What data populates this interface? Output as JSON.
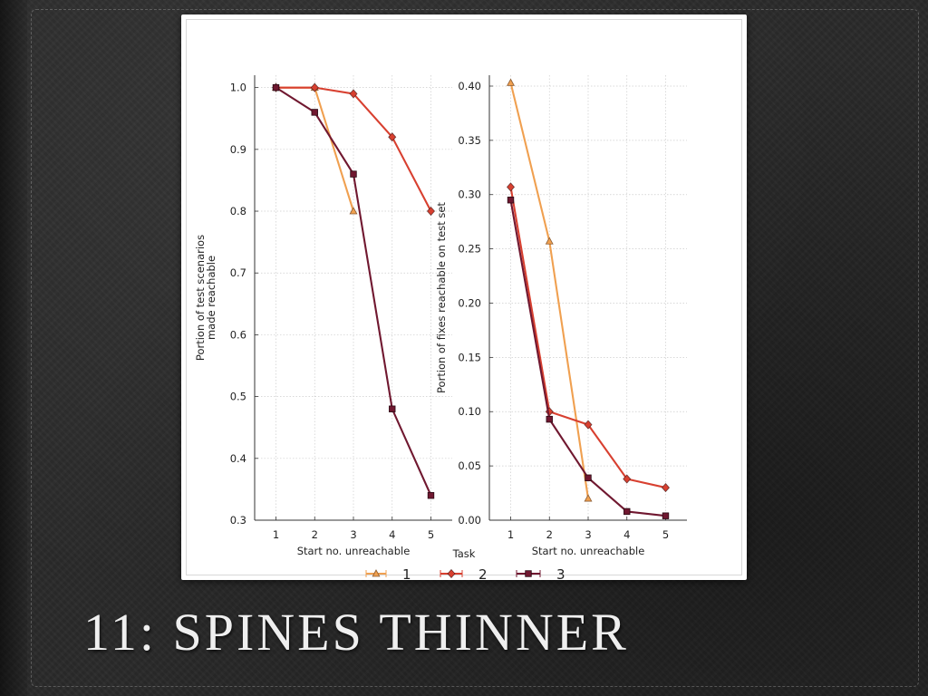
{
  "slide": {
    "title": "11: SPINES THINNER"
  },
  "colors": {
    "task1": "#f0a050",
    "task2": "#d84030",
    "task3": "#701830",
    "grid": "#cccccc",
    "axis": "#333333"
  },
  "chart_data": [
    {
      "type": "line",
      "xlabel": "Start no. unreachable",
      "ylabel": [
        "Portion of test scenarios",
        "made reachable"
      ],
      "x": [
        1,
        2,
        3,
        4,
        5
      ],
      "xlim": [
        0.45,
        5.55
      ],
      "ylim": [
        0.3,
        1.02
      ],
      "yticks": [
        "0.3",
        "0.4",
        "0.5",
        "0.6",
        "0.7",
        "0.8",
        "0.9",
        "1.0"
      ],
      "xticks": [
        "1",
        "2",
        "3",
        "4",
        "5"
      ],
      "grid": true,
      "series": [
        {
          "name": "1",
          "marker": "triangle",
          "values": [
            1.0,
            1.0,
            0.8,
            null,
            null
          ]
        },
        {
          "name": "2",
          "marker": "diamond",
          "values": [
            1.0,
            1.0,
            0.99,
            0.92,
            0.8
          ]
        },
        {
          "name": "3",
          "marker": "square",
          "values": [
            1.0,
            0.96,
            0.86,
            0.48,
            0.34
          ]
        }
      ]
    },
    {
      "type": "line",
      "xlabel": "Start no. unreachable",
      "ylabel": [
        "Portion of fixes reachable on test set"
      ],
      "x": [
        1,
        2,
        3,
        4,
        5
      ],
      "xlim": [
        0.45,
        5.55
      ],
      "ylim": [
        0.0,
        0.41
      ],
      "yticks": [
        "0.00",
        "0.05",
        "0.10",
        "0.15",
        "0.20",
        "0.25",
        "0.30",
        "0.35",
        "0.40"
      ],
      "xticks": [
        "1",
        "2",
        "3",
        "4",
        "5"
      ],
      "grid": true,
      "series": [
        {
          "name": "1",
          "marker": "triangle",
          "values": [
            0.403,
            0.257,
            0.02,
            null,
            null
          ]
        },
        {
          "name": "2",
          "marker": "diamond",
          "values": [
            0.307,
            0.1,
            0.088,
            0.038,
            0.03
          ]
        },
        {
          "name": "3",
          "marker": "square",
          "values": [
            0.295,
            0.093,
            0.039,
            0.008,
            0.004
          ]
        }
      ]
    }
  ],
  "legend": {
    "title": "Task",
    "placement": "bottom-center",
    "entries": [
      "1",
      "2",
      "3"
    ]
  }
}
